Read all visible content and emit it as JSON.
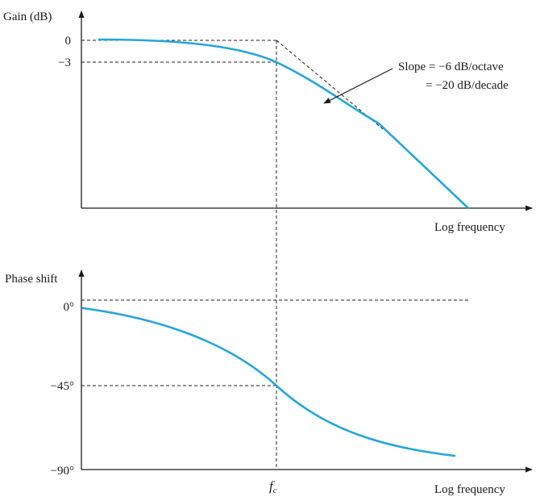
{
  "colors": {
    "curve": "#23a6dc",
    "ink": "#1a1a1a"
  },
  "gain_plot": {
    "ylabel": "Gain (dB)",
    "xlabel": "Log frequency",
    "ticks": [
      "0",
      "−3"
    ],
    "slope_annotation": {
      "line1": "Slope = −6 dB/octave",
      "line2": "= −20 dB/decade"
    }
  },
  "phase_plot": {
    "ylabel": "Phase shift",
    "xlabel": "Log frequency",
    "ticks": [
      "0°",
      "−45°",
      "−90°"
    ]
  },
  "cutoff": {
    "label_base": "f",
    "label_sub": "c"
  }
}
